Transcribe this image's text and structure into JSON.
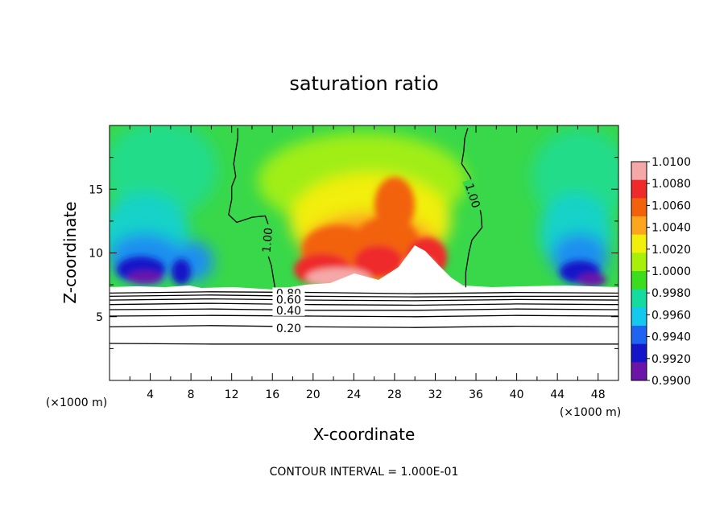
{
  "chart_data": {
    "type": "heatmap",
    "title": "saturation ratio",
    "xlabel": "X-coordinate",
    "ylabel": "Z-coordinate",
    "x_units": "(×1000 m)",
    "y_units": "(×1000 m)",
    "xlim": [
      0,
      50
    ],
    "ylim": [
      0,
      20
    ],
    "x_ticks": [
      4,
      8,
      12,
      16,
      20,
      24,
      28,
      32,
      36,
      40,
      44,
      48
    ],
    "y_ticks": [
      5,
      10,
      15
    ],
    "footer": "CONTOUR INTERVAL = 1.000E-01",
    "colorbar": {
      "ticks": [
        "1.0100",
        "1.0080",
        "1.0060",
        "1.0040",
        "1.0020",
        "1.0000",
        "0.9980",
        "0.9960",
        "0.9940",
        "0.9920",
        "0.9900"
      ],
      "colors": [
        "#f5a8a8",
        "#ee2a2a",
        "#f2620a",
        "#fca51e",
        "#f0f00a",
        "#a8f00a",
        "#3cdc1e",
        "#14dca0",
        "#14c8ee",
        "#1e64f0",
        "#1414c8",
        "#6a14a8"
      ]
    },
    "contour_labels": [
      {
        "text": "1.00",
        "x": 15.5,
        "y": 11.0,
        "angle": -85
      },
      {
        "text": "1.00",
        "x": 35.7,
        "y": 14.5,
        "angle": 72
      },
      {
        "text": "0.80",
        "x": 17.6,
        "y": 6.85,
        "angle": 0
      },
      {
        "text": "0.60",
        "x": 17.6,
        "y": 6.35,
        "angle": 0
      },
      {
        "text": "0.40",
        "x": 17.6,
        "y": 5.5,
        "angle": 0
      },
      {
        "text": "0.20",
        "x": 17.6,
        "y": 4.1,
        "angle": 0
      }
    ],
    "contour_lines": [
      {
        "level": "1.00",
        "points": [
          [
            12.6,
            19.8
          ],
          [
            12.6,
            19.0
          ],
          [
            12.4,
            18.0
          ],
          [
            12.2,
            17.0
          ],
          [
            12.4,
            16.0
          ],
          [
            12.0,
            15.2
          ],
          [
            12.0,
            14.2
          ],
          [
            11.7,
            13.0
          ],
          [
            12.5,
            12.4
          ],
          [
            14.0,
            12.8
          ],
          [
            15.3,
            12.9
          ],
          [
            15.6,
            12.2
          ],
          [
            15.3,
            11.0
          ],
          [
            15.5,
            10.0
          ],
          [
            15.9,
            9.0
          ],
          [
            16.1,
            8.0
          ],
          [
            16.3,
            7.1
          ]
        ]
      },
      {
        "level": "1.00",
        "points": [
          [
            35.2,
            19.8
          ],
          [
            34.9,
            19.0
          ],
          [
            34.8,
            18.0
          ],
          [
            34.6,
            17.0
          ],
          [
            35.4,
            16.0
          ],
          [
            35.8,
            15.2
          ],
          [
            36.2,
            14.2
          ],
          [
            36.5,
            13.0
          ],
          [
            36.6,
            12.0
          ],
          [
            35.6,
            11.0
          ],
          [
            35.3,
            10.0
          ],
          [
            35.0,
            8.5
          ],
          [
            35.0,
            7.3
          ]
        ]
      },
      {
        "level": "0.80",
        "points": [
          [
            0,
            6.85
          ],
          [
            10,
            6.95
          ],
          [
            20,
            6.9
          ],
          [
            30,
            6.8
          ],
          [
            40,
            6.9
          ],
          [
            50,
            6.85
          ]
        ]
      },
      {
        "level": "0.70",
        "points": [
          [
            0,
            6.6
          ],
          [
            10,
            6.7
          ],
          [
            20,
            6.6
          ],
          [
            30,
            6.55
          ],
          [
            40,
            6.6
          ],
          [
            50,
            6.6
          ]
        ]
      },
      {
        "level": "0.60",
        "points": [
          [
            0,
            6.3
          ],
          [
            10,
            6.4
          ],
          [
            20,
            6.3
          ],
          [
            30,
            6.25
          ],
          [
            40,
            6.35
          ],
          [
            50,
            6.3
          ]
        ]
      },
      {
        "level": "0.50",
        "points": [
          [
            0,
            5.95
          ],
          [
            10,
            6.05
          ],
          [
            20,
            5.95
          ],
          [
            30,
            5.9
          ],
          [
            40,
            6.0
          ],
          [
            50,
            5.95
          ]
        ]
      },
      {
        "level": "0.40",
        "points": [
          [
            0,
            5.55
          ],
          [
            10,
            5.6
          ],
          [
            20,
            5.5
          ],
          [
            30,
            5.5
          ],
          [
            40,
            5.6
          ],
          [
            50,
            5.55
          ]
        ]
      },
      {
        "level": "0.30",
        "points": [
          [
            0,
            5.05
          ],
          [
            10,
            5.1
          ],
          [
            20,
            5.05
          ],
          [
            30,
            5.0
          ],
          [
            40,
            5.1
          ],
          [
            50,
            5.05
          ]
        ]
      },
      {
        "level": "0.20",
        "points": [
          [
            0,
            4.2
          ],
          [
            10,
            4.3
          ],
          [
            20,
            4.2
          ],
          [
            30,
            4.15
          ],
          [
            40,
            4.25
          ],
          [
            50,
            4.2
          ]
        ]
      },
      {
        "level": "0.10",
        "points": [
          [
            0,
            2.9
          ],
          [
            10,
            2.85
          ],
          [
            20,
            2.85
          ],
          [
            30,
            2.85
          ],
          [
            40,
            2.85
          ],
          [
            50,
            2.85
          ]
        ]
      }
    ]
  }
}
